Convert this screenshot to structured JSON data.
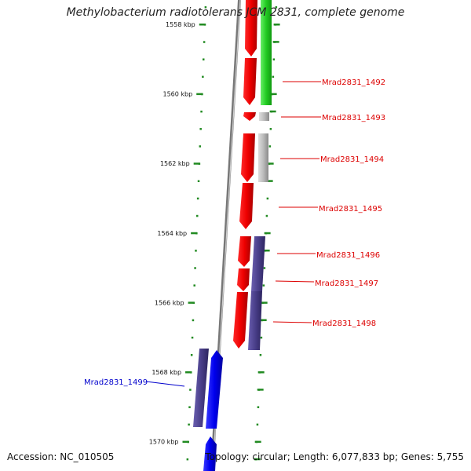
{
  "title": "Methylobacterium radiotolerans JCM 2831, complete genome",
  "ticks": [
    {
      "kbp": 1558,
      "label": "1558 kbp"
    },
    {
      "kbp": 1560,
      "label": "1560 kbp"
    },
    {
      "kbp": 1562,
      "label": "1562 kbp"
    },
    {
      "kbp": 1564,
      "label": "1564 kbp"
    },
    {
      "kbp": 1566,
      "label": "1566 kbp"
    },
    {
      "kbp": 1568,
      "label": "1568 kbp"
    },
    {
      "kbp": 1570,
      "label": "1570 kbp"
    }
  ],
  "genes": [
    {
      "id": "Mrad2831_1492",
      "strand": "forward",
      "color": "#dd0000"
    },
    {
      "id": "Mrad2831_1493",
      "strand": "forward",
      "color": "#dd0000"
    },
    {
      "id": "Mrad2831_1494",
      "strand": "forward",
      "color": "#dd0000"
    },
    {
      "id": "Mrad2831_1495",
      "strand": "forward",
      "color": "#dd0000"
    },
    {
      "id": "Mrad2831_1496",
      "strand": "forward",
      "color": "#dd0000"
    },
    {
      "id": "Mrad2831_1497",
      "strand": "forward",
      "color": "#dd0000"
    },
    {
      "id": "Mrad2831_1498",
      "strand": "forward",
      "color": "#dd0000"
    },
    {
      "id": "Mrad2831_1499",
      "strand": "reverse",
      "color": "#0000cc"
    }
  ],
  "colors": {
    "forward": "#dd0000",
    "reverse": "#0000cc",
    "tick": "#228b22",
    "backbone": "#888888",
    "green_feature": "#22cc22",
    "gray_feature": "#bbbbbb",
    "purple_feature": "#4a3f8a"
  },
  "footer": {
    "accession": "Accession: NC_010505",
    "topology": "Topology: circular; Length: 6,077,833 bp; Genes: 5,755"
  }
}
